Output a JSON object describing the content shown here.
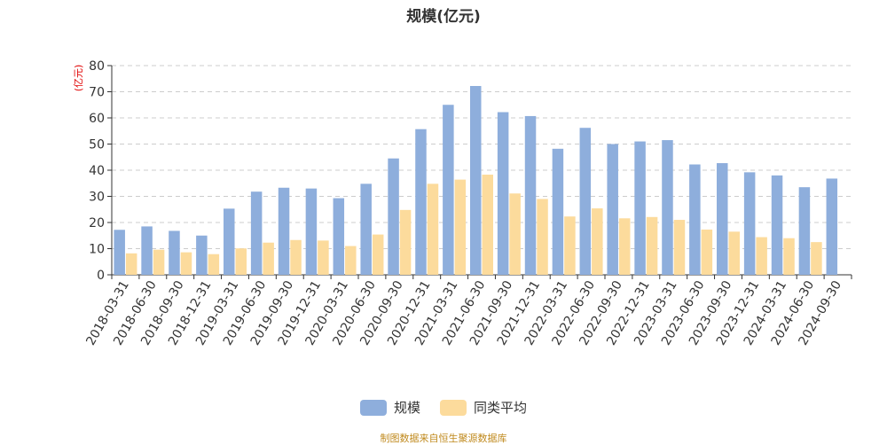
{
  "chart_data": {
    "type": "bar",
    "title": "规模(亿元)",
    "ylabel": "(亿元)",
    "xlabel": "",
    "ylim": [
      0,
      80
    ],
    "yticks": [
      0,
      10,
      20,
      30,
      40,
      50,
      60,
      70,
      80
    ],
    "grid": true,
    "legend_position": "bottom-center",
    "categories": [
      "2018-03-31",
      "2018-06-30",
      "2018-09-30",
      "2018-12-31",
      "2019-03-31",
      "2019-06-30",
      "2019-09-30",
      "2019-12-31",
      "2020-03-31",
      "2020-06-30",
      "2020-09-30",
      "2020-12-31",
      "2021-03-31",
      "2021-06-30",
      "2021-09-30",
      "2021-12-31",
      "2022-03-31",
      "2022-06-30",
      "2022-09-30",
      "2022-12-31",
      "2023-03-31",
      "2023-06-30",
      "2023-09-30",
      "2023-12-31",
      "2024-03-31",
      "2024-06-30",
      "2024-09-30"
    ],
    "series": [
      {
        "name": "规模",
        "color": "#8eaedc",
        "values": [
          17.2,
          18.5,
          16.8,
          15.0,
          25.3,
          31.8,
          33.3,
          33.0,
          29.3,
          34.8,
          44.5,
          55.7,
          65.0,
          72.2,
          62.2,
          60.7,
          48.2,
          56.2,
          50.0,
          51.0,
          51.5,
          42.2,
          42.7,
          39.2,
          38.0,
          33.5,
          36.8
        ]
      },
      {
        "name": "同类平均",
        "color": "#fcdb9c",
        "values": [
          8.2,
          9.6,
          8.6,
          7.9,
          10.1,
          12.3,
          13.3,
          13.1,
          11.0,
          15.4,
          24.8,
          34.8,
          36.4,
          38.3,
          31.1,
          29.0,
          22.3,
          25.4,
          21.6,
          22.1,
          21.0,
          17.3,
          16.5,
          14.4,
          14.0,
          12.5,
          0
        ]
      }
    ]
  },
  "source_text": "制图数据来自恒生聚源数据库"
}
